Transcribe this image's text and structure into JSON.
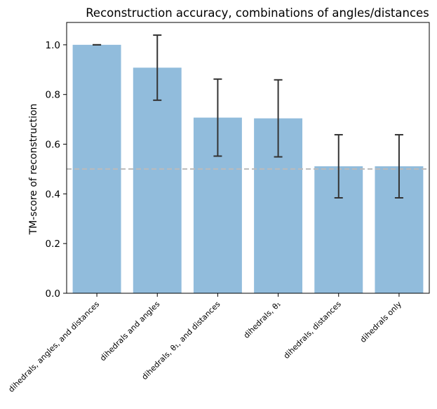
{
  "chart_data": {
    "type": "bar",
    "title": "Reconstruction accuracy, combinations of angles/distances",
    "xlabel": "",
    "ylabel": "TM-score of reconstruction",
    "ylim": [
      0,
      1.09
    ],
    "yticks": [
      0.0,
      0.2,
      0.4,
      0.6,
      0.8,
      1.0
    ],
    "ytick_labels": [
      "0.0",
      "0.2",
      "0.4",
      "0.6",
      "0.8",
      "1.0"
    ],
    "categories": [
      "dihedrals, angles, and distances",
      "dihedrals and angles",
      "dihedrals, θ₁, and distances",
      "dihedrals, θ₁",
      "dihedrals, distances",
      "dihedrals only"
    ],
    "values": [
      1.0,
      0.908,
      0.707,
      0.704,
      0.511,
      0.511
    ],
    "error": [
      0.0,
      0.131,
      0.155,
      0.155,
      0.127,
      0.127
    ],
    "reference_line": {
      "y": 0.5,
      "style": "dashed"
    },
    "grid": false,
    "colors": {
      "bar": "#91bcdc",
      "error_bar": "#333333",
      "reference_line": "#bbbbbb",
      "axis": "#000000"
    }
  }
}
